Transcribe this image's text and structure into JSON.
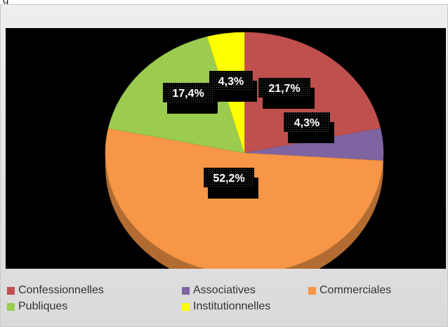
{
  "chart_data": {
    "type": "pie",
    "style": "3d",
    "title": "",
    "legend_position": "bottom",
    "categories": [
      "Confessionnelles",
      "Associatives",
      "Commerciales",
      "Publiques",
      "Institutionnelles"
    ],
    "values": [
      21.7,
      4.3,
      52.2,
      17.4,
      4.3
    ],
    "labels": [
      "21,7%",
      "4,3%",
      "52,2%",
      "17,4%",
      "4,3%"
    ],
    "colors": [
      "#c0504d",
      "#8064a2",
      "#f79646",
      "#9bcc50",
      "#ffff00"
    ],
    "background": "#000000"
  }
}
